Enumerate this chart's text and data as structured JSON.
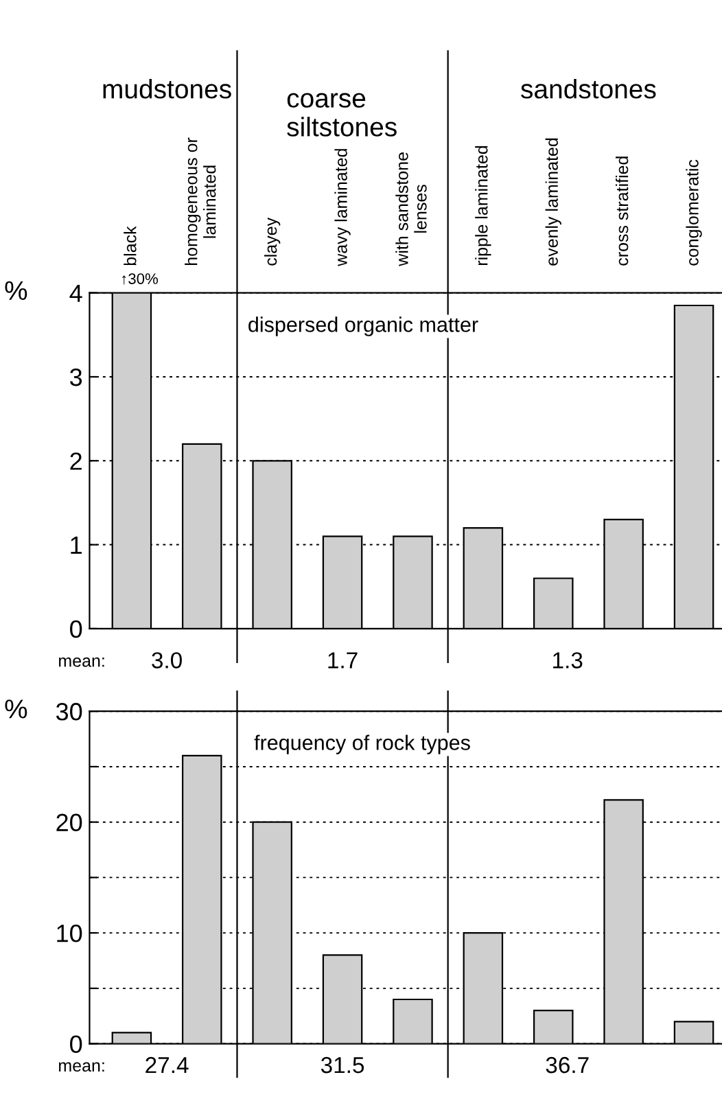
{
  "chart_data": [
    {
      "type": "bar",
      "title": "dispersed organic matter",
      "ylabel": "%",
      "categories": [
        "black",
        "homogeneous or\nlaminated",
        "clayey",
        "wavy laminated",
        "with sandstone\nlenses",
        "ripple laminated",
        "evenly laminated",
        "cross stratified",
        "conglomeratic"
      ],
      "values": [
        4,
        2.2,
        2.0,
        1.1,
        1.1,
        1.2,
        0.6,
        1.3,
        3.85
      ],
      "color": "#cfcfcf",
      "ylim": [
        0,
        4
      ],
      "yticks": [
        0,
        1,
        2,
        3,
        4
      ],
      "grid": "y",
      "annotations": [
        "mudstones",
        "coarse\nsiltstones",
        "sandstones",
        {
          "text": "↑30%",
          "x": "black",
          "y": 4
        },
        "mean:",
        "3.0",
        "1.7",
        "1.3"
      ]
    },
    {
      "type": "bar",
      "title": "frequency of rock types",
      "ylabel": "%",
      "categories": [
        null,
        null,
        null,
        null,
        null,
        null,
        null,
        null,
        null
      ],
      "values": [
        1,
        26,
        20,
        8,
        4,
        10,
        3,
        22,
        2
      ],
      "color": "#cfcfcf",
      "ylim": [
        0,
        30
      ],
      "yticks": [
        0,
        {
          "value": 5,
          "label": null
        },
        10,
        {
          "value": 15,
          "label": null
        },
        20,
        {
          "value": 25,
          "label": null
        },
        30
      ],
      "grid": "y",
      "tick_labels": "y",
      "annotations": [
        "mean:",
        "27.4",
        "31.5",
        "36.7"
      ]
    }
  ]
}
